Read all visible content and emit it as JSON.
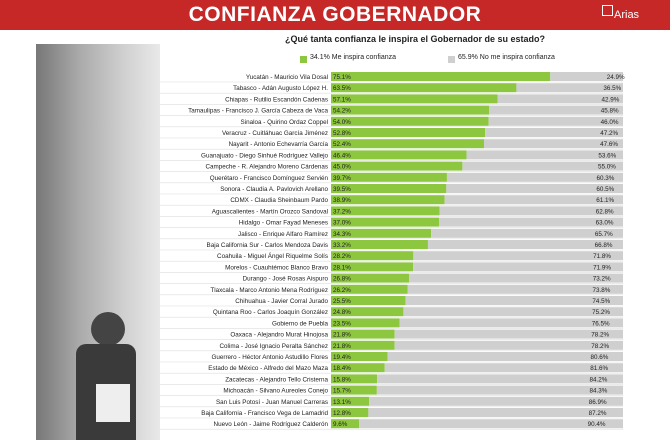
{
  "header": {
    "title": "CONFIANZA GOBERNADOR",
    "logo_text": "Arias"
  },
  "colors": {
    "confia": "#8dc63f",
    "no_confia": "#cfcfcf",
    "banner": "#c62828"
  },
  "chart_data": {
    "type": "bar",
    "title": "¿Qué tanta confianza le inspira el Gobernador de su estado?",
    "orientation": "horizontal",
    "stacked": true,
    "xlim": [
      0,
      100
    ],
    "legend": {
      "placement": "top"
    },
    "categories": [
      "Yucatán - Mauricio Vila Dosal",
      "Tabasco - Adán Augusto López H.",
      "Chiapas - Rutilio Escandón Cadenas",
      "Tamaulipas - Francisco J. García Cabeza de Vaca",
      "Sinaloa - Quirino Ordaz Coppel",
      "Veracruz - Cuitláhuac García Jiménez",
      "Nayarit - Antonio Echevarría García",
      "Guanajuato - Diego Sinhué Rodríguez Vallejo",
      "Campeche - R. Alejandro Moreno Cárdenas",
      "Querétaro - Francisco Domínguez Servién",
      "Sonora - Claudia A. Pavlovich Arellano",
      "CDMX - Claudia Sheinbaum Pardo",
      "Aguascalientes - Martín Orozco Sandoval",
      "Hidalgo - Omar Fayad Meneses",
      "Jalisco - Enrique Alfaro Ramírez",
      "Baja California Sur - Carlos Mendoza Davis",
      "Coahuila - Miguel Ángel Riquelme Solís",
      "Morelos - Cuauhtémoc Blanco Bravo",
      "Durango - José Rosas Aispuro",
      "Tlaxcala - Marco Antonio Mena Rodríguez",
      "Chihuahua - Javier Corral Jurado",
      "Quintana Roo - Carlos Joaquín González",
      "Gobierno de Puebla",
      "Oaxaca - Alejandro Murat Hinojosa",
      "Colima - José Ignacio Peralta Sánchez",
      "Guerrero - Héctor Antonio Astudillo Flores",
      "Estado de México - Alfredo del Mazo Maza",
      "Zacatecas - Alejandro Tello Cristerna",
      "Michoacán - Silvano Aureoles Conejo",
      "San Luis Potosí - Juan Manuel Carreras",
      "Baja California - Francisco Vega de Lamadrid",
      "Nuevo León - Jaime Rodríguez Calderón"
    ],
    "series": [
      {
        "name": "34.1% Me inspira confianza",
        "values": [
          75.1,
          63.5,
          57.1,
          54.2,
          54.0,
          52.8,
          52.4,
          46.4,
          45.0,
          39.7,
          39.5,
          38.9,
          37.2,
          37.0,
          34.3,
          33.2,
          28.2,
          28.1,
          26.8,
          26.2,
          25.5,
          24.8,
          23.5,
          21.8,
          21.8,
          19.4,
          18.4,
          15.8,
          15.7,
          13.1,
          12.8,
          9.6
        ],
        "labels": [
          "75.1%",
          "63.5%",
          "57.1%",
          "54.2%",
          "54.0%",
          "52.8%",
          "52.4%",
          "46.4%",
          "45.0%",
          "39.7%",
          "39.5%",
          "38.9%",
          "37.2%",
          "37.0%",
          "34.3%",
          "33.2%",
          "28.2%",
          "28.1%",
          "26.8%",
          "26.2%",
          "25.5%",
          "24.8%",
          "23.5%",
          "21.8%",
          "21.8%",
          "19.4%",
          "18.4%",
          "15.8%",
          "15.7%",
          "13.1%",
          "12.8%",
          "9.6%"
        ]
      },
      {
        "name": "65.9% No me inspira confianza",
        "values": [
          24.9,
          36.5,
          42.9,
          45.8,
          46.0,
          47.2,
          47.6,
          53.6,
          55.0,
          60.3,
          60.5,
          61.1,
          62.8,
          63.0,
          65.7,
          66.8,
          71.8,
          71.9,
          73.2,
          73.8,
          74.5,
          75.2,
          76.5,
          78.2,
          78.2,
          80.6,
          81.6,
          84.2,
          84.3,
          86.9,
          87.2,
          90.4
        ],
        "labels": [
          "24.9%",
          "36.5%",
          "42.9%",
          "45.8%",
          "46.0%",
          "47.2%",
          "47.6%",
          "53.6%",
          "55.0%",
          "60.3%",
          "60.5%",
          "61.1%",
          "62.8%",
          "63.0%",
          "65.7%",
          "66.8%",
          "71.8%",
          "71.9%",
          "73.2%",
          "73.8%",
          "74.5%",
          "75.2%",
          "76.5%",
          "78.2%",
          "78.2%",
          "80.6%",
          "81.6%",
          "84.2%",
          "84.3%",
          "86.9%",
          "87.2%",
          "90.4%"
        ]
      }
    ]
  }
}
